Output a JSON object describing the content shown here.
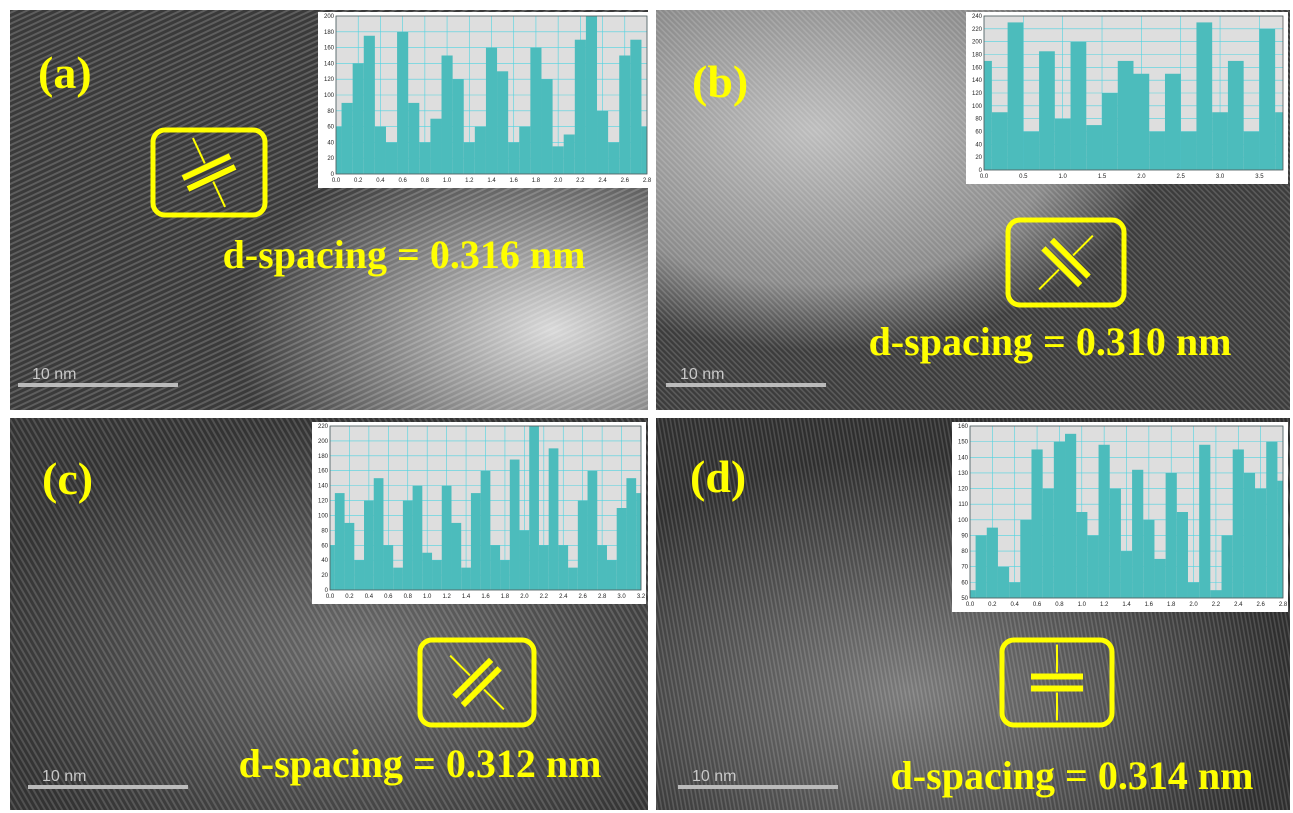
{
  "panels": [
    {
      "label": "(a)",
      "annotation": "d-spacing = 0.316 nm",
      "scale_bar": "10 nm",
      "inset": {
        "type": "bar",
        "xlim": [
          0,
          2.8
        ],
        "ylim": [
          0,
          200
        ],
        "xticks": [
          {
            "value": 0,
            "label": "0.0"
          },
          0.2,
          0.4,
          0.6,
          0.8,
          {
            "value": 1,
            "label": "1.0"
          },
          1.2,
          1.4,
          1.6,
          1.8,
          {
            "value": 2,
            "label": "2.0"
          },
          2.2,
          2.4,
          2.6,
          2.8
        ],
        "yticks": [
          0,
          20,
          40,
          60,
          80,
          100,
          120,
          140,
          160,
          180,
          200
        ],
        "x": [
          0,
          0.1,
          0.2,
          0.3,
          0.4,
          0.5,
          0.6,
          0.7,
          0.8,
          0.9,
          1.0,
          1.1,
          1.2,
          1.3,
          1.4,
          1.5,
          1.6,
          1.7,
          1.8,
          1.9,
          2.0,
          2.1,
          2.2,
          2.3,
          2.4,
          2.5,
          2.6,
          2.7,
          2.8
        ],
        "values": [
          60,
          90,
          140,
          175,
          60,
          40,
          180,
          90,
          40,
          70,
          150,
          120,
          40,
          60,
          160,
          130,
          40,
          60,
          160,
          120,
          35,
          50,
          170,
          200,
          80,
          40,
          150,
          170,
          60
        ]
      }
    },
    {
      "label": "(b)",
      "annotation": "d-spacing = 0.310 nm",
      "scale_bar": "10 nm",
      "inset": {
        "type": "bar",
        "xlim": [
          0,
          3.8
        ],
        "ylim": [
          0,
          240
        ],
        "xticks": [
          {
            "value": 0,
            "label": "0.0"
          },
          0.5,
          {
            "value": 1,
            "label": "1.0"
          },
          1.5,
          {
            "value": 2,
            "label": "2.0"
          },
          2.5,
          {
            "value": 3,
            "label": "3.0"
          },
          3.5
        ],
        "yticks": [
          0,
          20,
          40,
          60,
          80,
          100,
          120,
          140,
          160,
          180,
          200,
          220,
          240
        ],
        "x": [
          0,
          0.2,
          0.4,
          0.6,
          0.8,
          1.0,
          1.2,
          1.4,
          1.6,
          1.8,
          2.0,
          2.2,
          2.4,
          2.6,
          2.8,
          3.0,
          3.2,
          3.4,
          3.6,
          3.8
        ],
        "values": [
          170,
          90,
          230,
          60,
          185,
          80,
          200,
          70,
          120,
          170,
          150,
          60,
          150,
          60,
          230,
          90,
          170,
          60,
          220,
          90
        ]
      }
    },
    {
      "label": "(c)",
      "annotation": "d-spacing = 0.312 nm",
      "scale_bar": "10 nm",
      "inset": {
        "type": "bar",
        "xlim": [
          0,
          3.2
        ],
        "ylim": [
          0,
          220
        ],
        "xticks": [
          {
            "value": 0,
            "label": "0.0"
          },
          0.2,
          0.4,
          0.6,
          0.8,
          {
            "value": 1,
            "label": "1.0"
          },
          1.2,
          1.4,
          1.6,
          1.8,
          {
            "value": 2,
            "label": "2.0"
          },
          2.2,
          2.4,
          2.6,
          2.8,
          {
            "value": 3,
            "label": "3.0"
          },
          3.2
        ],
        "yticks": [
          0,
          20,
          40,
          60,
          80,
          100,
          120,
          140,
          160,
          180,
          200,
          220
        ],
        "x": [
          0,
          0.1,
          0.2,
          0.3,
          0.4,
          0.5,
          0.6,
          0.7,
          0.8,
          0.9,
          1.0,
          1.1,
          1.2,
          1.3,
          1.4,
          1.5,
          1.6,
          1.7,
          1.8,
          1.9,
          2.0,
          2.1,
          2.2,
          2.3,
          2.4,
          2.5,
          2.6,
          2.7,
          2.8,
          2.9,
          3.0,
          3.1,
          3.2
        ],
        "values": [
          60,
          130,
          90,
          40,
          120,
          150,
          60,
          30,
          120,
          140,
          50,
          40,
          140,
          90,
          30,
          130,
          160,
          60,
          40,
          175,
          80,
          220,
          60,
          190,
          60,
          30,
          120,
          160,
          60,
          40,
          110,
          150,
          130
        ]
      }
    },
    {
      "label": "(d)",
      "annotation": "d-spacing = 0.314 nm",
      "scale_bar": "10 nm",
      "inset": {
        "type": "bar",
        "xlim": [
          0,
          2.8
        ],
        "ylim": [
          50,
          160
        ],
        "xticks": [
          {
            "value": 0,
            "label": "0.0"
          },
          0.2,
          0.4,
          0.6,
          0.8,
          {
            "value": 1,
            "label": "1.0"
          },
          1.2,
          1.4,
          1.6,
          1.8,
          {
            "value": 2,
            "label": "2.0"
          },
          2.2,
          2.4,
          2.6,
          2.8
        ],
        "yticks": [
          50,
          60,
          70,
          80,
          90,
          100,
          110,
          120,
          130,
          140,
          150,
          160
        ],
        "x": [
          0,
          0.1,
          0.2,
          0.3,
          0.4,
          0.5,
          0.6,
          0.7,
          0.8,
          0.9,
          1.0,
          1.1,
          1.2,
          1.3,
          1.4,
          1.5,
          1.6,
          1.7,
          1.8,
          1.9,
          2.0,
          2.1,
          2.2,
          2.3,
          2.4,
          2.5,
          2.6,
          2.7,
          2.8
        ],
        "values": [
          55,
          90,
          95,
          70,
          60,
          100,
          145,
          120,
          150,
          155,
          105,
          90,
          148,
          120,
          80,
          132,
          100,
          75,
          130,
          105,
          60,
          148,
          55,
          90,
          145,
          130,
          120,
          150,
          125
        ]
      }
    }
  ]
}
